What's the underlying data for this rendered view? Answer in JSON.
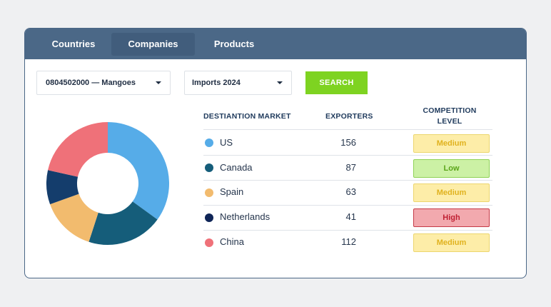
{
  "tabs": [
    {
      "label": "Countries",
      "active": false
    },
    {
      "label": "Companies",
      "active": true
    },
    {
      "label": "Products",
      "active": false
    }
  ],
  "filters": {
    "product_value": "0804502000 — Mangoes",
    "period_value": "Imports 2024",
    "search_label": "SEARCH"
  },
  "table": {
    "headers": {
      "market": "DESTIANTION MARKET",
      "exporters": "EXPORTERS",
      "competition_line1": "COMPETITION",
      "competition_line2": "LEVEL"
    },
    "rows": [
      {
        "country": "US",
        "exporters": "156",
        "level": "Medium",
        "dot_color": "#56ace8"
      },
      {
        "country": "Canada",
        "exporters": "87",
        "level": "Low",
        "dot_color": "#155d7a"
      },
      {
        "country": "Spain",
        "exporters": "63",
        "level": "Medium",
        "dot_color": "#f2bb6e"
      },
      {
        "country": "Netherlands",
        "exporters": "41",
        "level": "High",
        "dot_color": "#0f2557"
      },
      {
        "country": "China",
        "exporters": "112",
        "level": "Medium",
        "dot_color": "#ef7179"
      }
    ]
  },
  "level_colors": {
    "Medium": {
      "bg": "#fdeda8",
      "border": "#ecd66e",
      "text": "#e0b21f"
    },
    "Low": {
      "bg": "#ccf1a5",
      "border": "#8fd256",
      "text": "#5ba51a"
    },
    "High": {
      "bg": "#f2a9ae",
      "border": "#c53a47",
      "text": "#c02133"
    }
  },
  "donut": {
    "segments": [
      {
        "label": "US",
        "value": 35,
        "color": "#56ace8"
      },
      {
        "label": "Canada",
        "value": 20,
        "color": "#155d7a"
      },
      {
        "label": "Spain",
        "value": 14.5,
        "color": "#f2bb6e"
      },
      {
        "label": "Netherlands",
        "value": 9,
        "color": "#143d6c"
      },
      {
        "label": "China",
        "value": 21.5,
        "color": "#ef7179"
      }
    ]
  }
}
